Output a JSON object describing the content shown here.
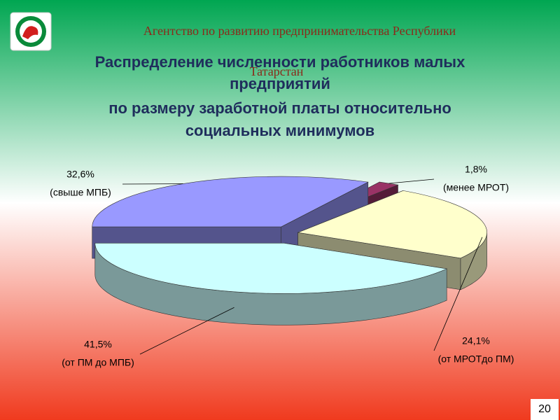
{
  "header": {
    "agency": [
      "Агентство по развитию предпринимательства Республики",
      "Татарстан"
    ]
  },
  "page_number": 20,
  "chart_data": {
    "type": "pie",
    "title": [
      "Распределение численности работников малых",
      "предприятий",
      "по размеру  заработной платы относительно",
      "социальных минимумов"
    ],
    "categories": [
      "(свыше МПБ)",
      "(менее МРОТ)",
      "(от МРОТдо ПМ)",
      "(от ПМ до МПБ)"
    ],
    "values": [
      32.6,
      1.8,
      24.1,
      41.5
    ],
    "value_labels": [
      "32,6%",
      "1,8%",
      "24,1%",
      "41,5%"
    ],
    "colors": [
      "#9999ff",
      "#993366",
      "#ffffcc",
      "#ccffff"
    ]
  }
}
